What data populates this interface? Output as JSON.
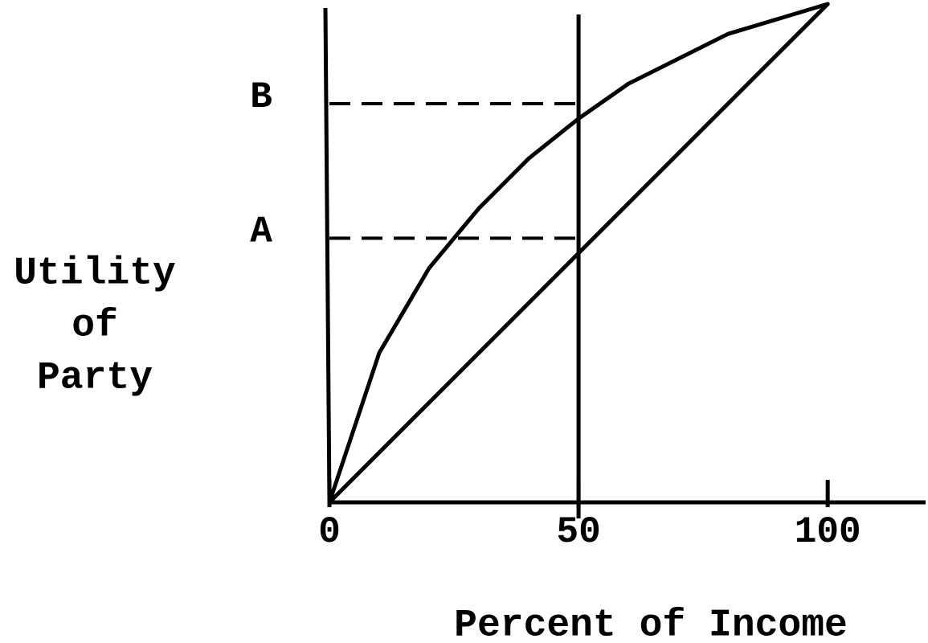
{
  "chart_data": {
    "type": "line",
    "xlabel": "Percent of Income",
    "ylabel": [
      "Utility",
      "of",
      "Party"
    ],
    "x": [
      0,
      10,
      20,
      30,
      40,
      50,
      60,
      70,
      80,
      90,
      100
    ],
    "series": [
      {
        "color": "#000000",
        "values": [
          0,
          30,
          47,
          59,
          69,
          77,
          84,
          89,
          94,
          97,
          100
        ]
      },
      {
        "color": "#000000",
        "values": [
          0,
          10,
          20,
          30,
          40,
          50,
          60,
          70,
          80,
          90,
          100
        ]
      }
    ],
    "xlim": [
      0,
      119
    ],
    "ylim": [
      0,
      100
    ],
    "xticks": [
      0,
      50,
      100
    ],
    "yticks": [
      {
        "value": 53,
        "label": "A"
      },
      {
        "value": 80,
        "label": "B"
      }
    ]
  }
}
